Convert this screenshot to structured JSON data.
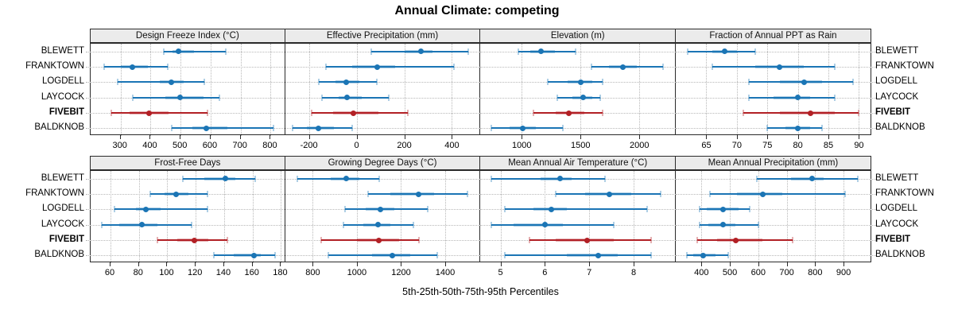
{
  "title": "Annual Climate: competing",
  "footer": "5th-25th-50th-75th-95th Percentiles",
  "percentile_order": [
    "5th",
    "25th",
    "50th",
    "75th",
    "95th"
  ],
  "colors": {
    "normal": "#1b75b5",
    "normal_band": "rgba(27,117,181,0.35)",
    "highlight": "#b22025",
    "highlight_band": "rgba(178,32,37,0.35)",
    "strip_bg": "#ebebeb",
    "border": "#2a2a2a",
    "grid": "#b8b8b8"
  },
  "sites": [
    {
      "label": "BLEWETT",
      "highlight": false
    },
    {
      "label": "FRANKTOWN",
      "highlight": false
    },
    {
      "label": "LOGDELL",
      "highlight": false
    },
    {
      "label": "LAYCOCK",
      "highlight": false
    },
    {
      "label": "FIVEBIT",
      "highlight": true
    },
    {
      "label": "BALDKNOB",
      "highlight": false
    }
  ],
  "chart_data": [
    {
      "type": "dot-whisker",
      "title": "Design Freeze Index (°C)",
      "row": 0,
      "col": 0,
      "xlim": [
        200,
        851
      ],
      "ticks": [
        300,
        400,
        500,
        600,
        700,
        800
      ],
      "series": [
        {
          "name": "BLEWETT",
          "values": [
            445,
            473,
            492,
            545,
            650
          ]
        },
        {
          "name": "FRANKTOWN",
          "values": [
            245,
            300,
            338,
            390,
            458
          ]
        },
        {
          "name": "LOGDELL",
          "values": [
            290,
            430,
            468,
            510,
            580
          ]
        },
        {
          "name": "LAYCOCK",
          "values": [
            340,
            450,
            498,
            575,
            630
          ]
        },
        {
          "name": "FIVEBIT",
          "values": [
            270,
            330,
            395,
            460,
            590
          ]
        },
        {
          "name": "BALDKNOB",
          "values": [
            470,
            540,
            585,
            655,
            810
          ]
        }
      ]
    },
    {
      "type": "dot-whisker",
      "title": "Effective Precipitation (mm)",
      "row": 0,
      "col": 1,
      "xlim": [
        -300,
        520
      ],
      "ticks": [
        -200,
        0,
        200,
        400
      ],
      "series": [
        {
          "name": "BLEWETT",
          "values": [
            60,
            200,
            270,
            320,
            470
          ]
        },
        {
          "name": "FRANKTOWN",
          "values": [
            -130,
            -20,
            85,
            160,
            410
          ]
        },
        {
          "name": "LOGDELL",
          "values": [
            -160,
            -90,
            -45,
            10,
            85
          ]
        },
        {
          "name": "LAYCOCK",
          "values": [
            -145,
            -75,
            -40,
            20,
            135
          ]
        },
        {
          "name": "FIVEBIT",
          "values": [
            -190,
            -100,
            -15,
            90,
            215
          ]
        },
        {
          "name": "BALDKNOB",
          "values": [
            -270,
            -210,
            -160,
            -95,
            -20
          ]
        }
      ]
    },
    {
      "type": "dot-whisker",
      "title": "Elevation (m)",
      "row": 0,
      "col": 2,
      "xlim": [
        650,
        2310
      ],
      "ticks": [
        1000,
        1500,
        2000
      ],
      "series": [
        {
          "name": "BLEWETT",
          "values": [
            975,
            1075,
            1165,
            1280,
            1460
          ]
        },
        {
          "name": "FRANKTOWN",
          "values": [
            1590,
            1740,
            1860,
            1980,
            2200
          ]
        },
        {
          "name": "LOGDELL",
          "values": [
            1220,
            1390,
            1505,
            1600,
            1690
          ]
        },
        {
          "name": "LAYCOCK",
          "values": [
            1300,
            1430,
            1520,
            1600,
            1670
          ]
        },
        {
          "name": "FIVEBIT",
          "values": [
            1100,
            1290,
            1400,
            1530,
            1690
          ]
        },
        {
          "name": "BALDKNOB",
          "values": [
            740,
            900,
            1010,
            1120,
            1350
          ]
        }
      ]
    },
    {
      "type": "dot-whisker",
      "title": "Fraction of Annual PPT as Rain",
      "row": 0,
      "col": 3,
      "xlim": [
        60,
        92
      ],
      "ticks": [
        65,
        70,
        75,
        80,
        85,
        90
      ],
      "series": [
        {
          "name": "BLEWETT",
          "values": [
            62,
            66,
            68,
            70,
            73
          ]
        },
        {
          "name": "FRANKTOWN",
          "values": [
            66,
            73,
            77,
            81,
            86
          ]
        },
        {
          "name": "LOGDELL",
          "values": [
            72,
            77,
            81,
            84,
            89
          ]
        },
        {
          "name": "LAYCOCK",
          "values": [
            72,
            76,
            80,
            82,
            86
          ]
        },
        {
          "name": "FIVEBIT",
          "values": [
            71,
            77,
            82,
            86,
            90
          ]
        },
        {
          "name": "BALDKNOB",
          "values": [
            75,
            78,
            80,
            82,
            84
          ]
        }
      ]
    },
    {
      "type": "dot-whisker",
      "title": "Frost-Free Days",
      "row": 1,
      "col": 0,
      "xlim": [
        46,
        183.5
      ],
      "ticks": [
        60,
        80,
        100,
        120,
        140,
        160,
        180
      ],
      "series": [
        {
          "name": "BLEWETT",
          "values": [
            111,
            126,
            141,
            148,
            162
          ]
        },
        {
          "name": "FRANKTOWN",
          "values": [
            88,
            98,
            106,
            115,
            128
          ]
        },
        {
          "name": "LOGDELL",
          "values": [
            63,
            78,
            85,
            95,
            128
          ]
        },
        {
          "name": "LAYCOCK",
          "values": [
            54,
            66,
            82,
            93,
            117
          ]
        },
        {
          "name": "FIVEBIT",
          "values": [
            93,
            107,
            119,
            129,
            142
          ]
        },
        {
          "name": "BALDKNOB",
          "values": [
            133,
            147,
            161,
            166,
            176
          ]
        }
      ]
    },
    {
      "type": "dot-whisker",
      "title": "Growing Degree Days (°C)",
      "row": 1,
      "col": 1,
      "xlim": [
        675,
        1560
      ],
      "ticks": [
        800,
        1000,
        1200,
        1400
      ],
      "series": [
        {
          "name": "BLEWETT",
          "values": [
            730,
            880,
            950,
            1010,
            1100
          ]
        },
        {
          "name": "FRANKTOWN",
          "values": [
            1050,
            1150,
            1280,
            1350,
            1500
          ]
        },
        {
          "name": "LOGDELL",
          "values": [
            945,
            1040,
            1105,
            1170,
            1320
          ]
        },
        {
          "name": "LAYCOCK",
          "values": [
            940,
            1030,
            1095,
            1150,
            1255
          ]
        },
        {
          "name": "FIVEBIT",
          "values": [
            840,
            1000,
            1100,
            1190,
            1280
          ]
        },
        {
          "name": "BALDKNOB",
          "values": [
            870,
            1070,
            1160,
            1240,
            1365
          ]
        }
      ]
    },
    {
      "type": "dot-whisker",
      "title": "Mean Annual Air Temperature (°C)",
      "row": 1,
      "col": 2,
      "xlim": [
        4.55,
        8.95
      ],
      "ticks": [
        5,
        6,
        7,
        8
      ],
      "series": [
        {
          "name": "BLEWETT",
          "values": [
            4.8,
            5.9,
            6.35,
            6.6,
            7.35
          ]
        },
        {
          "name": "FRANKTOWN",
          "values": [
            6.25,
            6.9,
            7.45,
            7.95,
            8.6
          ]
        },
        {
          "name": "LOGDELL",
          "values": [
            5.1,
            5.75,
            6.15,
            6.5,
            8.3
          ]
        },
        {
          "name": "LAYCOCK",
          "values": [
            4.8,
            5.3,
            6.0,
            6.4,
            7.55
          ]
        },
        {
          "name": "FIVEBIT",
          "values": [
            5.65,
            6.25,
            6.95,
            7.55,
            8.4
          ]
        },
        {
          "name": "BALDKNOB",
          "values": [
            5.1,
            6.5,
            7.2,
            7.65,
            8.4
          ]
        }
      ]
    },
    {
      "type": "dot-whisker",
      "title": "Mean Annual Precipitation (mm)",
      "row": 1,
      "col": 3,
      "xlim": [
        310,
        997
      ],
      "ticks": [
        400,
        500,
        600,
        700,
        800,
        900
      ],
      "series": [
        {
          "name": "BLEWETT",
          "values": [
            595,
            715,
            790,
            830,
            950
          ]
        },
        {
          "name": "FRANKTOWN",
          "values": [
            430,
            525,
            615,
            685,
            905
          ]
        },
        {
          "name": "LOGDELL",
          "values": [
            395,
            420,
            475,
            530,
            570
          ]
        },
        {
          "name": "LAYCOCK",
          "values": [
            395,
            425,
            475,
            520,
            600
          ]
        },
        {
          "name": "FIVEBIT",
          "values": [
            385,
            455,
            520,
            615,
            720
          ]
        },
        {
          "name": "BALDKNOB",
          "values": [
            350,
            370,
            405,
            450,
            495
          ]
        }
      ]
    }
  ]
}
